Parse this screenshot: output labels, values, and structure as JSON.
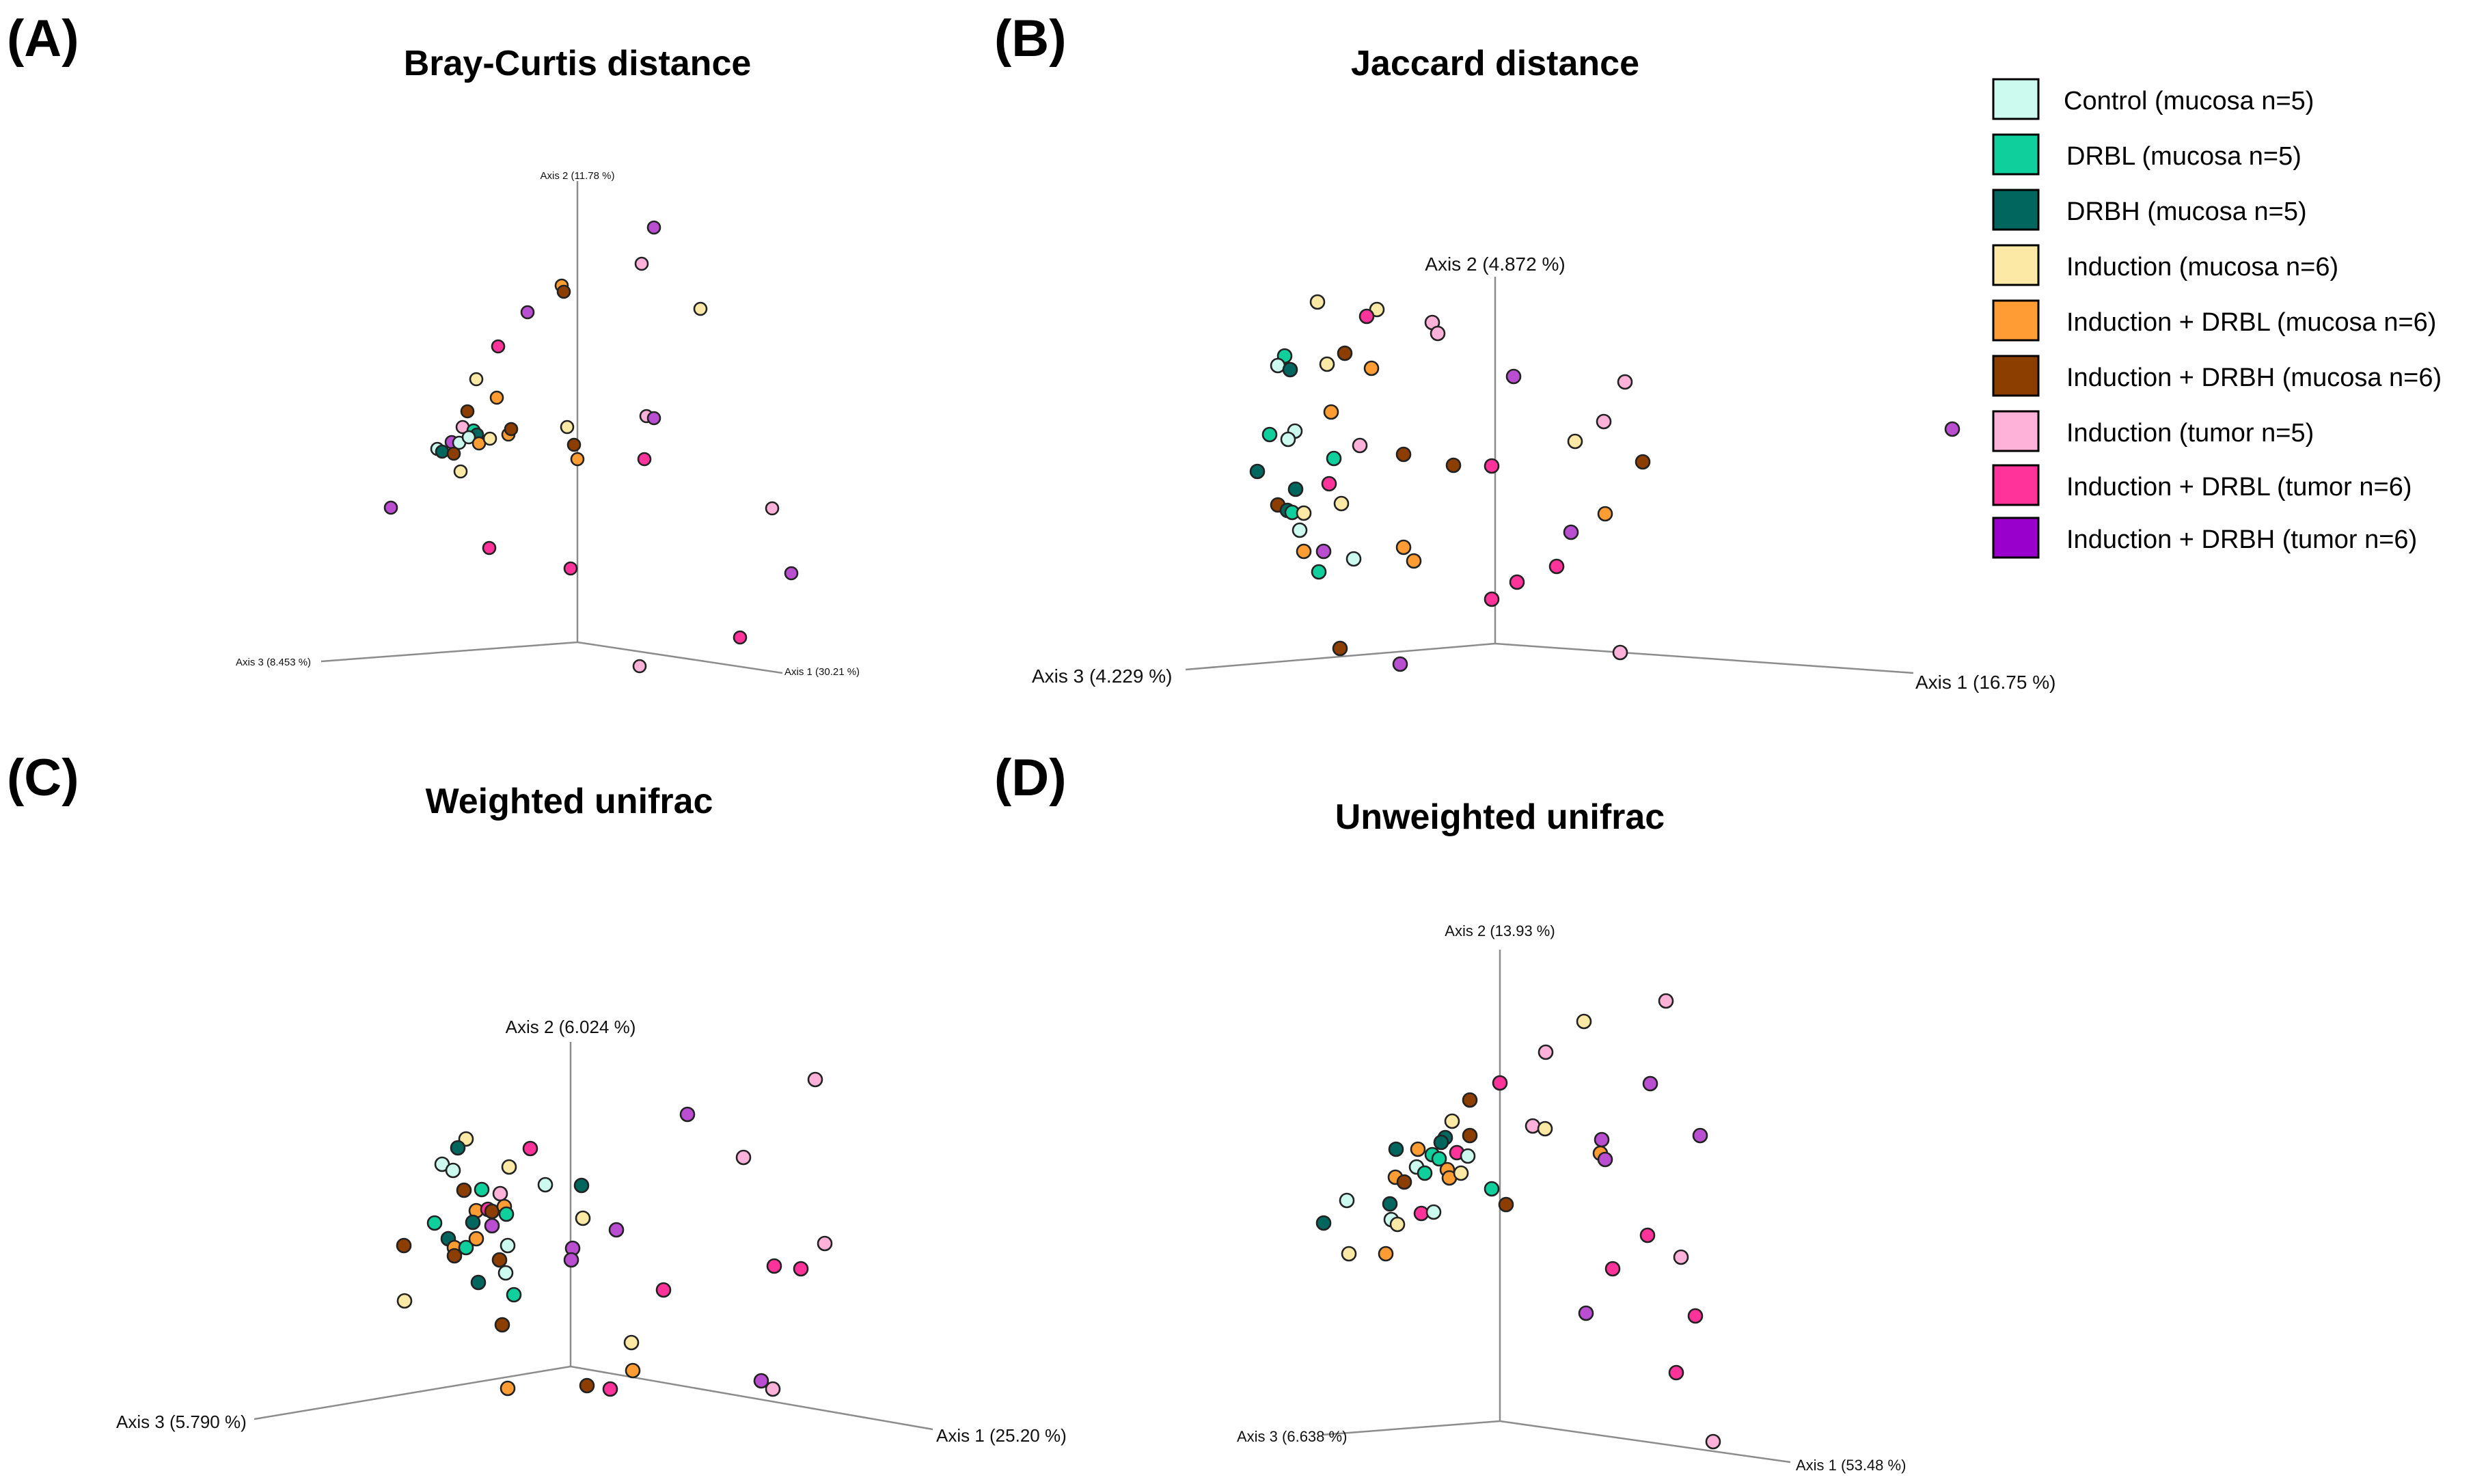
{
  "legend": [
    {
      "label": "Control (mucosa n=5)",
      "color": "#ccfaee"
    },
    {
      "label": "DRBL (mucosa n=5)",
      "color": "#0fcf9c"
    },
    {
      "label": "DRBH (mucosa n=5)",
      "color": "#00665e"
    },
    {
      "label": "Induction (mucosa n=6)",
      "color": "#fde9a6"
    },
    {
      "label": "Induction + DRBL (mucosa n=6)",
      "color": "#ff9c33"
    },
    {
      "label": "Induction + DRBH (mucosa n=6)",
      "color": "#8b3e00"
    },
    {
      "label": "Induction (tumor n=5)",
      "color": "#ffb2d9"
    },
    {
      "label": "Induction + DRBL (tumor n=6)",
      "color": "#ff3399"
    },
    {
      "label": "Induction + DRBH (tumor n=6)",
      "color": "#9900cc"
    }
  ],
  "chart_data": [
    {
      "type": "scatter",
      "panel": "(A)",
      "title": "Bray-Curtis distance",
      "axes": {
        "axis1": "Axis 1 (30.21 %)",
        "axis2": "Axis 2 (11.78 %)",
        "axis3": "Axis 3 (8.453 %)"
      },
      "grid": false
    },
    {
      "type": "scatter",
      "panel": "(B)",
      "title": "Jaccard distance",
      "axes": {
        "axis1": "Axis 1 (16.75 %)",
        "axis2": "Axis 2 (4.872 %)",
        "axis3": "Axis 3 (4.229 %)"
      },
      "grid": false
    },
    {
      "type": "scatter",
      "panel": "(C)",
      "title": "Weighted unifrac",
      "axes": {
        "axis1": "Axis 1 (25.20 %)",
        "axis2": "Axis 2 (6.024 %)",
        "axis3": "Axis 3 (5.790 %)"
      },
      "grid": false
    },
    {
      "type": "scatter",
      "panel": "(D)",
      "title": "Unweighted unifrac",
      "axes": {
        "axis1": "Axis 1 (53.48 %)",
        "axis2": "Axis 2 (13.93 %)",
        "axis3": "Axis 3 (6.638 %)"
      },
      "grid": false
    }
  ]
}
